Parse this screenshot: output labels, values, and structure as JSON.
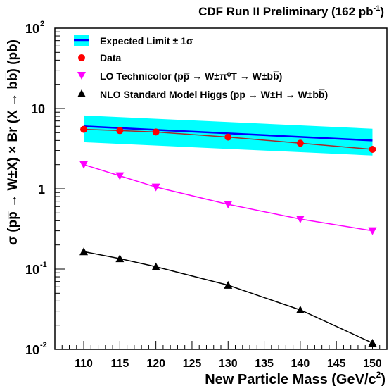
{
  "chart_data": {
    "type": "line",
    "title": "CDF Run II Preliminary (162 pb",
    "title_sup": "-1",
    "title_end": ")",
    "xlabel": "New Particle Mass (GeV/c",
    "xlabel_sup": "2",
    "xlabel_end": ")",
    "ylabel": "σ (pp̅ → W±X) × Br (X → bb̅) (pb)",
    "y_scale": "log",
    "xlim": [
      106,
      152
    ],
    "ylim": [
      0.01,
      100
    ],
    "x_ticks": [
      110,
      115,
      120,
      125,
      130,
      135,
      140,
      145,
      150
    ],
    "y_tick_labels": [
      {
        "value": 0.01,
        "base": "10",
        "exp": "-2"
      },
      {
        "value": 0.1,
        "base": "10",
        "exp": "-1"
      },
      {
        "value": 1,
        "base": "1",
        "exp": ""
      },
      {
        "value": 10,
        "base": "10",
        "exp": ""
      },
      {
        "value": 100,
        "base": "10",
        "exp": "2"
      }
    ],
    "legend_position": "top-left",
    "expected_limit": {
      "name": "Expected Limit ± 1σ",
      "x": [
        110,
        150
      ],
      "central": [
        6.0,
        4.0
      ],
      "lower": [
        3.8,
        2.6
      ],
      "upper": [
        8.2,
        5.6
      ],
      "line_color": "#0000ff",
      "band_color": "#00ffff"
    },
    "series": [
      {
        "name": "Data",
        "marker": "circle",
        "color": "#ff0000",
        "line_color": "#a52a2a",
        "x": [
          110,
          115,
          120,
          130,
          140,
          150
        ],
        "values": [
          5.5,
          5.3,
          5.1,
          4.4,
          3.7,
          3.1
        ]
      },
      {
        "name": "LO Technicolor (pp̅ → W±π⁰T → W±bb̅)",
        "marker": "triangle-down",
        "color": "#ff00ff",
        "line_color": "#ff00ff",
        "x": [
          110,
          115,
          120,
          130,
          140,
          150
        ],
        "values": [
          2.0,
          1.45,
          1.05,
          0.64,
          0.42,
          0.3
        ]
      },
      {
        "name": "NLO Standard Model Higgs (pp̅ → W±H → W±bb̅)",
        "marker": "triangle-up",
        "color": "#000000",
        "line_color": "#000000",
        "x": [
          110,
          115,
          120,
          130,
          140,
          150
        ],
        "values": [
          0.165,
          0.135,
          0.107,
          0.063,
          0.031,
          0.012
        ]
      }
    ]
  }
}
